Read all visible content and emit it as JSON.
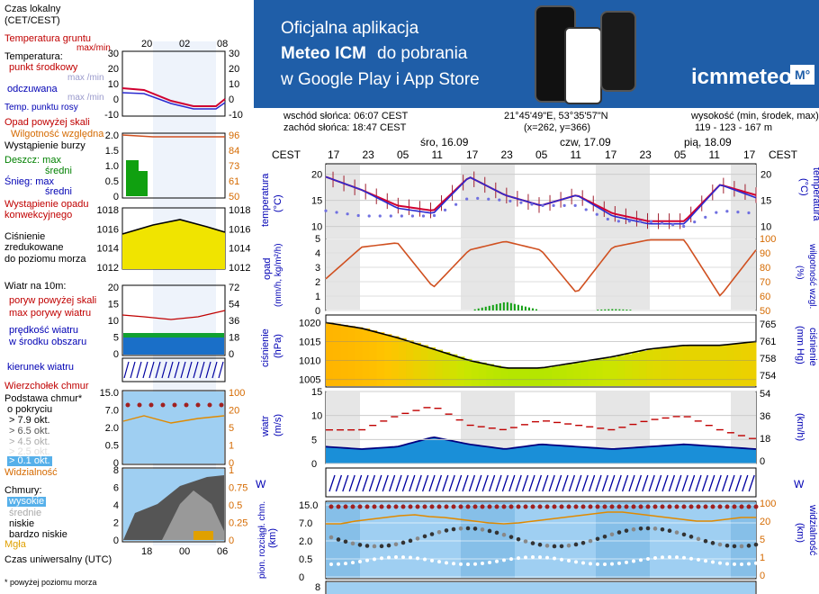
{
  "legend": {
    "czas_lokalny": "Czas lokalny",
    "cet_cest": "(CET/CEST)",
    "temp_gruntu": "Temperatura gruntu",
    "max_min": "max/min",
    "temperatura": "Temperatura:",
    "punkt_srodkowy": "punkt środkowy",
    "max_min2": "max /min",
    "odczuwana": "odczuwana",
    "max_min3": "max /min",
    "punkt_rosy": "Temp. punktu rosy",
    "opad_skali": "Opad powyżej skali",
    "wilgotnosc": "Wilgotność względna",
    "burza": "Wystąpienie burzy",
    "deszcz_max": "Deszcz: max",
    "deszcz_sredni": "średni",
    "snieg_max": "Śnieg:    max",
    "snieg_sredni": "średni",
    "wystapienie_opadu": "Wystąpienie opadu",
    "konwekcyjnego": "konwekcyjnego",
    "cisnienie": "Ciśnienie",
    "zredukowane": "zredukowane",
    "do_poziomu": "do poziomu morza",
    "wiatr_na": "Wiatr na 10m:",
    "poryw_skali": "poryw powyżej skali",
    "max_porywy": "max porywy wiatru",
    "predkosc": "prędkość wiatru",
    "w_srodku": "w środku obszaru",
    "kierunek": "kierunek wiatru",
    "wierzcholek": "Wierzchołek chmur",
    "podstawa": "Podstawa chmur*",
    "o_pokryciu": "o pokryciu",
    "okt1": "> 7.9 okt.",
    "okt2": "> 6.5 okt.",
    "okt3": "> 4.5 okt.",
    "okt4": "> 2.5 okt.",
    "okt5": "> 0.1 okt.",
    "widzialnosc": "Widzialność",
    "chmury": "Chmury:",
    "wysokie": "wysokie",
    "srednie": "średnie",
    "niskie": "niskie",
    "bardzo_niskie": "bardzo niskie",
    "mgla": "Mgła",
    "czas_utc": "Czas uniwersalny (UTC)",
    "footnote": "* powyżej poziomu morza"
  },
  "legend_ticks": {
    "top_hours": [
      "20",
      "02",
      "08"
    ],
    "bottom_hours": [
      "18",
      "00",
      "06"
    ],
    "t_left": [
      "30",
      "20",
      "10",
      "0",
      "-10"
    ],
    "t_right": [
      "30",
      "20",
      "10",
      "0",
      "-10"
    ],
    "p_left": [
      "2.0",
      "1.5",
      "1.0",
      "0.5",
      "0"
    ],
    "p_right": [
      "96",
      "84",
      "73",
      "61",
      "50"
    ],
    "c_left": [
      "1018",
      "1016",
      "1014",
      "1012"
    ],
    "c_right": [
      "1018",
      "1016",
      "1014",
      "1012"
    ],
    "w_left": [
      "20",
      "15",
      "10",
      "5",
      "0"
    ],
    "w_right": [
      "72",
      "54",
      "36",
      "18",
      "0"
    ],
    "cl_left": [
      "15.0",
      "7.0",
      "2.0",
      "0.5",
      "0"
    ],
    "cl_right": [
      "100",
      "20",
      "5",
      "1",
      "0"
    ],
    "ch_left": [
      "8",
      "6",
      "4",
      "2",
      "0"
    ],
    "ch_right": [
      "1",
      "0.75",
      "0.5",
      "0.25",
      "0"
    ]
  },
  "banner": {
    "line1": "Oficjalna aplikacja",
    "line2a": "Meteo ICM",
    "line2b": " do pobrania",
    "line3": "w Google Play i App Store",
    "logo_text": "icmmeteo",
    "logo_badge": "M°"
  },
  "info": {
    "sunrise": "wschód słońca: 06:07 CEST",
    "sunset": "zachód słońca: 18:47 CEST",
    "coords": "21°45'49\"E, 53°35'57\"N",
    "grid": "(x=262,  y=366)",
    "alt_label": "wysokość (min, środek, max)",
    "alt_values": "119 - 123 - 167 m"
  },
  "timeline": {
    "cest": "CEST",
    "days": [
      "śro, 16.09",
      "czw, 17.09",
      "pią, 18.09"
    ],
    "hours": [
      "17",
      "23",
      "05",
      "11",
      "17",
      "23",
      "05",
      "11",
      "17",
      "23",
      "05",
      "11",
      "17"
    ]
  },
  "panels": {
    "temp": {
      "label": "temperatura",
      "unit": "(°C)",
      "ticks": [
        "20",
        "15",
        "10"
      ]
    },
    "precip": {
      "label": "opad",
      "unit": "(mm/h, kg/m²/h)",
      "ticks_left": [
        "5",
        "4",
        "3",
        "2",
        "1",
        "0"
      ],
      "label_right": "wilgotność wzgl.",
      "unit_right": "(%)",
      "ticks_right": [
        "100",
        "90",
        "80",
        "70",
        "60",
        "50"
      ]
    },
    "press": {
      "label": "ciśnienie",
      "unit": "(hPa)",
      "ticks_left": [
        "1020",
        "1015",
        "1010",
        "1005"
      ],
      "label_right": "ciśnienie",
      "unit_right": "(mm Hg)",
      "ticks_right": [
        "765",
        "761",
        "758",
        "754"
      ]
    },
    "wind": {
      "label": "wiatr",
      "unit": "(m/s)",
      "ticks_left": [
        "15",
        "10",
        "5",
        "0"
      ],
      "unit_right": "(km/h)",
      "ticks_right": [
        "54",
        "36",
        "18",
        "0"
      ]
    },
    "cloud": {
      "label": "pion. rozciągł. chm.",
      "unit": "(km)",
      "ticks_left": [
        "15.0",
        "7.0",
        "2.0",
        "0.5",
        "0"
      ],
      "label_right": "widzialność",
      "unit_right": "(km)",
      "ticks_right": [
        "100",
        "20",
        "5",
        "1",
        "0"
      ]
    },
    "bottom": {
      "tick": "8"
    }
  },
  "colors": {
    "banner": "#1f5ea8",
    "temp_line": "#d00030",
    "feel_line": "#2a2ad0",
    "dew": "#7070e0",
    "rh_line": "#d05020",
    "rain": "#10a010",
    "wind_fill": "#1a8fd8",
    "gust": "#c00000"
  },
  "chart_data": [
    {
      "type": "line",
      "title": "temperatura",
      "x": [
        "17",
        "23",
        "05",
        "11",
        "17",
        "23",
        "05",
        "11",
        "17",
        "23",
        "05",
        "11",
        "17"
      ],
      "ylabel": "(°C)",
      "ylim": [
        7,
        22
      ],
      "series": [
        {
          "name": "punkt środkowy",
          "values": [
            19.5,
            17,
            14,
            13,
            19.5,
            16,
            14,
            16,
            12.5,
            11,
            11,
            18,
            16
          ]
        },
        {
          "name": "odczuwana",
          "values": [
            19.5,
            17,
            13.5,
            12.5,
            19.5,
            16,
            14,
            16,
            12,
            10.5,
            10.5,
            18,
            15.5
          ]
        },
        {
          "name": "Temp. punktu rosy",
          "values": [
            13,
            12,
            12,
            12,
            15.5,
            15,
            14,
            14,
            11,
            11,
            10,
            13,
            12.5
          ]
        }
      ]
    },
    {
      "type": "line",
      "title": "opad",
      "x": [
        "17",
        "23",
        "05",
        "11",
        "17",
        "23",
        "05",
        "11",
        "17",
        "23",
        "05",
        "11",
        "17"
      ],
      "ylabel": "(mm/h, kg/m²/h)",
      "ylim": [
        0,
        5
      ],
      "series": [
        {
          "name": "wilgotność wzgl.",
          "values": [
            72,
            94,
            97,
            66,
            92,
            98,
            92,
            62,
            94,
            99,
            99,
            60,
            92
          ]
        },
        {
          "name": "opad",
          "values": [
            0,
            0,
            0,
            0,
            0,
            0.6,
            0,
            0,
            0.1,
            0,
            0,
            0,
            0
          ]
        }
      ]
    },
    {
      "type": "area",
      "title": "ciśnienie",
      "x": [
        "17",
        "23",
        "05",
        "11",
        "17",
        "23",
        "05",
        "11",
        "17",
        "23",
        "05",
        "11",
        "17"
      ],
      "ylabel": "(hPa)",
      "ylim": [
        1003,
        1022
      ],
      "series": [
        {
          "name": "ciśnienie",
          "values": [
            1020,
            1018.5,
            1016,
            1013,
            1010,
            1008,
            1008,
            1009.5,
            1011,
            1013,
            1014,
            1014,
            1015
          ]
        }
      ]
    },
    {
      "type": "area",
      "title": "wiatr",
      "x": [
        "17",
        "23",
        "05",
        "11",
        "17",
        "23",
        "05",
        "11",
        "17",
        "23",
        "05",
        "11",
        "17"
      ],
      "ylabel": "(m/s)",
      "ylim": [
        0,
        15
      ],
      "series": [
        {
          "name": "prędkość wiatru",
          "values": [
            3.5,
            3,
            3.5,
            5.5,
            4,
            3,
            4,
            3.5,
            3,
            3.5,
            4,
            3.5,
            3
          ]
        },
        {
          "name": "max porywy wiatru",
          "values": [
            7,
            7,
            10,
            12,
            8,
            7,
            9,
            8,
            7,
            9,
            10,
            7,
            5
          ]
        }
      ]
    }
  ]
}
